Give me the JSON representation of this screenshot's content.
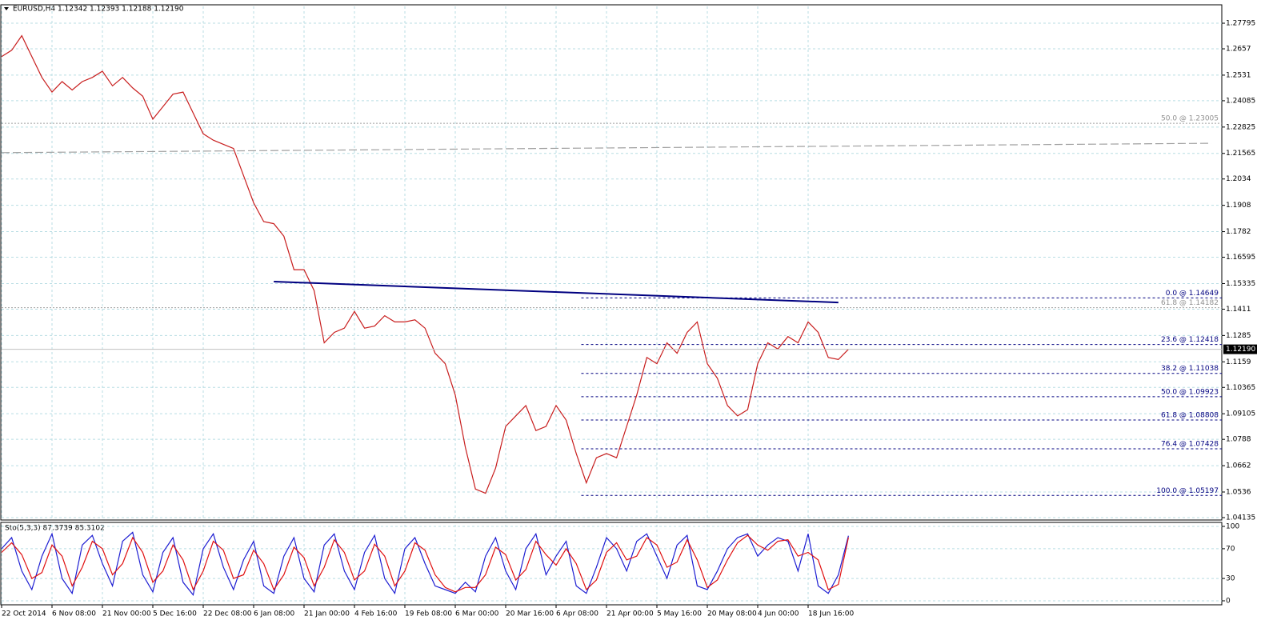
{
  "chart_data": [
    {
      "type": "line",
      "title": "EURUSD,H4  1.12342 1.12393 1.12188 1.12190",
      "categories": [
        "22 Oct 2014",
        null,
        null,
        null,
        null,
        "6 Nov 08:00",
        null,
        null,
        null,
        null,
        "21 Nov 00:00",
        null,
        null,
        null,
        null,
        "5 Dec 16:00",
        null,
        null,
        null,
        null,
        "22 Dec 08:00",
        null,
        null,
        null,
        null,
        "6 Jan 08:00",
        null,
        null,
        null,
        null,
        "21 Jan 00:00",
        null,
        null,
        null,
        null,
        "4 Feb 16:00",
        null,
        null,
        null,
        null,
        "19 Feb 08:00",
        null,
        null,
        null,
        null,
        "6 Mar 00:00",
        null,
        null,
        null,
        null,
        "20 Mar 16:00",
        null,
        null,
        null,
        null,
        "6 Apr 08:00",
        null,
        null,
        null,
        null,
        "21 Apr 00:00",
        null,
        null,
        null,
        null,
        "5 May 16:00",
        null,
        null,
        null,
        null,
        "20 May 08:00",
        null,
        null,
        null,
        null,
        "4 Jun 00:00",
        null,
        null,
        null,
        null,
        "18 Jun 16:00",
        null,
        null,
        null,
        null
      ],
      "series": [
        {
          "color": "#c81e1e",
          "values": [
            1.262,
            1.265,
            1.272,
            1.262,
            1.252,
            1.245,
            1.25,
            1.246,
            1.25,
            1.252,
            1.255,
            1.248,
            1.252,
            1.247,
            1.243,
            1.232,
            1.238,
            1.244,
            1.245,
            1.235,
            1.225,
            1.222,
            1.22,
            1.218,
            1.205,
            1.192,
            1.183,
            1.182,
            1.176,
            1.16,
            1.16,
            1.15,
            1.125,
            1.13,
            1.132,
            1.14,
            1.132,
            1.133,
            1.138,
            1.135,
            1.135,
            1.136,
            1.132,
            1.12,
            1.115,
            1.1,
            1.075,
            1.055,
            1.053,
            1.065,
            1.085,
            1.09,
            1.095,
            1.083,
            1.085,
            1.095,
            1.088,
            1.072,
            1.058,
            1.07,
            1.072,
            1.07,
            1.085,
            1.1,
            1.118,
            1.115,
            1.125,
            1.12,
            1.13,
            1.135,
            1.115,
            1.108,
            1.095,
            1.09,
            1.093,
            1.115,
            1.125,
            1.122,
            1.128,
            1.125,
            1.135,
            1.13,
            1.118,
            1.117,
            1.1219
          ]
        }
      ],
      "ylim": [
        1.0402,
        1.286
      ],
      "yticks": [
        1.27795,
        1.2657,
        1.2531,
        1.24085,
        1.22825,
        1.21565,
        1.2034,
        1.1908,
        1.1782,
        1.16595,
        1.15335,
        1.1411,
        1.1285,
        1.1159,
        1.10365,
        1.09105,
        1.0788,
        1.0662,
        1.0536,
        1.04135
      ],
      "grid": true,
      "current_price": {
        "value": 1.1219,
        "label": "1.12190"
      },
      "trendline": {
        "start": [
          27,
          1.1543
        ],
        "end": [
          83,
          1.1443
        ],
        "color": "#000080"
      },
      "long_ma": {
        "start": [
          0,
          1.216
        ],
        "end": [
          120,
          1.2205
        ],
        "color": "#a0a0a0"
      },
      "fib_levels": [
        {
          "label": "0.0 @ 1.14649",
          "value": 1.14649
        },
        {
          "label": "23.6 @ 1.12418",
          "value": 1.12418
        },
        {
          "label": "38.2 @ 1.11038",
          "value": 1.11038
        },
        {
          "label": "50.0 @ 1.09923",
          "value": 1.09923
        },
        {
          "label": "61.8 @ 1.08808",
          "value": 1.08808
        },
        {
          "label": "76.4 @ 1.07428",
          "value": 1.07428
        },
        {
          "label": "100.0 @ 1.05197",
          "value": 1.05197
        }
      ],
      "fib_levels_2": [
        {
          "label": "50.0 @ 1.23005",
          "value": 1.23005
        },
        {
          "label": "61.8 @ 1.14182",
          "value": 1.14182
        }
      ]
    },
    {
      "type": "line",
      "title": "Sto(5,3,3) 87.3739 85.3102",
      "series": [
        {
          "color": "#1e1ed2",
          "values": [
            70,
            85,
            40,
            15,
            60,
            90,
            30,
            10,
            75,
            88,
            50,
            20,
            80,
            92,
            35,
            12,
            65,
            85,
            25,
            8,
            70,
            90,
            45,
            15,
            55,
            80,
            20,
            10,
            60,
            85,
            30,
            12,
            75,
            90,
            40,
            15,
            65,
            88,
            30,
            10,
            70,
            85,
            50,
            20,
            15,
            10,
            25,
            12,
            60,
            85,
            40,
            15,
            70,
            90,
            35,
            60,
            80,
            20,
            10,
            45,
            85,
            70,
            40,
            80,
            90,
            60,
            30,
            75,
            88,
            20,
            15,
            40,
            70,
            85,
            90,
            60,
            75,
            85,
            80,
            40,
            90,
            20,
            10,
            35,
            87.3739
          ]
        },
        {
          "color": "#e01010",
          "values": [
            65,
            78,
            62,
            30,
            38,
            75,
            60,
            20,
            45,
            80,
            70,
            35,
            50,
            85,
            65,
            25,
            40,
            75,
            55,
            15,
            40,
            80,
            68,
            30,
            35,
            68,
            50,
            15,
            35,
            72,
            58,
            20,
            45,
            82,
            65,
            28,
            40,
            76,
            60,
            20,
            40,
            78,
            68,
            35,
            18,
            12,
            18,
            18,
            35,
            72,
            62,
            28,
            42,
            80,
            62,
            48,
            70,
            50,
            15,
            28,
            65,
            78,
            55,
            60,
            85,
            75,
            45,
            52,
            82,
            55,
            18,
            28,
            55,
            78,
            88,
            75,
            68,
            80,
            82,
            60,
            65,
            55,
            15,
            22,
            85.3102
          ]
        }
      ],
      "ylim": [
        0,
        100
      ],
      "yticks": [
        100,
        70,
        30,
        0
      ],
      "grid": true
    }
  ]
}
